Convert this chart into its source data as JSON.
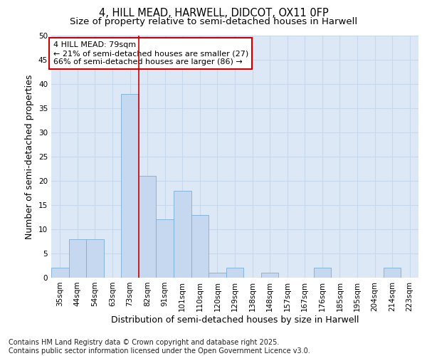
{
  "title_line1": "4, HILL MEAD, HARWELL, DIDCOT, OX11 0FP",
  "title_line2": "Size of property relative to semi-detached houses in Harwell",
  "xlabel": "Distribution of semi-detached houses by size in Harwell",
  "ylabel": "Number of semi-detached properties",
  "categories": [
    "35sqm",
    "44sqm",
    "54sqm",
    "63sqm",
    "73sqm",
    "82sqm",
    "91sqm",
    "101sqm",
    "110sqm",
    "120sqm",
    "129sqm",
    "138sqm",
    "148sqm",
    "157sqm",
    "167sqm",
    "176sqm",
    "185sqm",
    "195sqm",
    "204sqm",
    "214sqm",
    "223sqm"
  ],
  "values": [
    2,
    8,
    8,
    0,
    38,
    21,
    12,
    18,
    13,
    1,
    2,
    0,
    1,
    0,
    0,
    2,
    0,
    0,
    0,
    2,
    0
  ],
  "bar_color": "#c5d8f0",
  "bar_edge_color": "#7aaed6",
  "grid_color": "#c8d8ec",
  "background_color": "#dce8f5",
  "vline_color": "#cc0000",
  "vline_x_index": 5,
  "annotation_title": "4 HILL MEAD: 79sqm",
  "annotation_line1": "← 21% of semi-detached houses are smaller (27)",
  "annotation_line2": "66% of semi-detached houses are larger (86) →",
  "annotation_box_edgecolor": "#cc0000",
  "ylim": [
    0,
    50
  ],
  "yticks": [
    0,
    5,
    10,
    15,
    20,
    25,
    30,
    35,
    40,
    45,
    50
  ],
  "footnote_line1": "Contains HM Land Registry data © Crown copyright and database right 2025.",
  "footnote_line2": "Contains public sector information licensed under the Open Government Licence v3.0.",
  "title_fontsize": 10.5,
  "subtitle_fontsize": 9.5,
  "axis_label_fontsize": 9,
  "tick_fontsize": 7.5,
  "annotation_fontsize": 8,
  "footnote_fontsize": 7
}
